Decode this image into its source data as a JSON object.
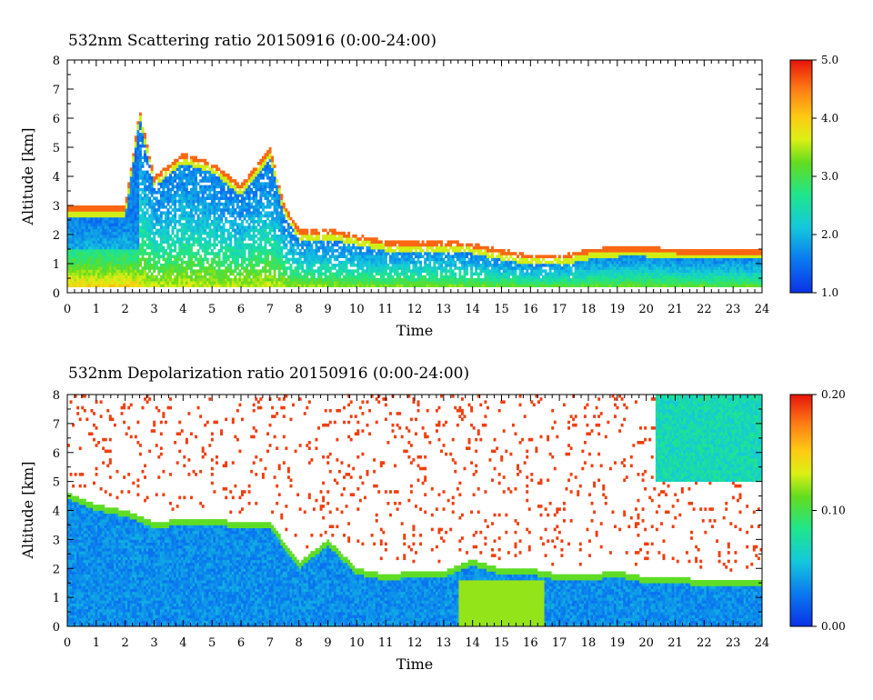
{
  "chart_data": [
    {
      "type": "heatmap",
      "title": "532nm Scattering ratio  20150916 (0:00-24:00)",
      "xlabel": "Time",
      "ylabel": "Altitude [km]",
      "xlim": [
        0,
        24
      ],
      "ylim": [
        0,
        8
      ],
      "x_ticks": [
        "0",
        "1",
        "2",
        "3",
        "4",
        "5",
        "6",
        "7",
        "8",
        "9",
        "10",
        "11",
        "12",
        "13",
        "14",
        "15",
        "16",
        "17",
        "18",
        "19",
        "20",
        "21",
        "22",
        "23",
        "24"
      ],
      "y_ticks": [
        "0",
        "1",
        "2",
        "3",
        "4",
        "5",
        "6",
        "7",
        "8"
      ],
      "colorbar": {
        "min": 1.0,
        "max": 5.0,
        "ticks": [
          "1.0",
          "2.0",
          "3.0",
          "4.0",
          "5.0"
        ]
      },
      "cloud_top_km": [
        [
          0,
          3.0
        ],
        [
          1,
          3.0
        ],
        [
          2,
          3.0
        ],
        [
          2.5,
          6.3
        ],
        [
          3,
          4.0
        ],
        [
          4,
          4.8
        ],
        [
          5,
          4.5
        ],
        [
          6,
          3.7
        ],
        [
          7,
          5.0
        ],
        [
          7.5,
          3.0
        ],
        [
          8,
          2.2
        ],
        [
          9,
          2.2
        ],
        [
          10,
          2.0
        ],
        [
          11,
          1.8
        ],
        [
          12,
          1.8
        ],
        [
          13,
          1.8
        ],
        [
          14,
          1.7
        ],
        [
          15,
          1.5
        ],
        [
          16,
          1.3
        ],
        [
          17,
          1.3
        ],
        [
          18,
          1.5
        ],
        [
          19,
          1.6
        ],
        [
          20,
          1.6
        ],
        [
          21,
          1.5
        ],
        [
          22,
          1.5
        ],
        [
          23,
          1.5
        ],
        [
          24,
          1.5
        ]
      ],
      "boundary_layer_ratio": [
        [
          0,
          4.2
        ],
        [
          0.5,
          3.6
        ],
        [
          1,
          3.0
        ],
        [
          1.5,
          2.6
        ],
        [
          2,
          2.3
        ],
        [
          2.5,
          2.0
        ]
      ]
    },
    {
      "type": "heatmap",
      "title": "532nm Depolarization ratio  20150916 (0:00-24:00)",
      "xlabel": "Time",
      "ylabel": "Altitude [km]",
      "xlim": [
        0,
        24
      ],
      "ylim": [
        0,
        8
      ],
      "x_ticks": [
        "0",
        "1",
        "2",
        "3",
        "4",
        "5",
        "6",
        "7",
        "8",
        "9",
        "10",
        "11",
        "12",
        "13",
        "14",
        "15",
        "16",
        "17",
        "18",
        "19",
        "20",
        "21",
        "22",
        "23",
        "24"
      ],
      "y_ticks": [
        "0",
        "1",
        "2",
        "3",
        "4",
        "5",
        "6",
        "7",
        "8"
      ],
      "colorbar": {
        "min": 0.0,
        "max": 0.2,
        "ticks": [
          "0.00",
          "0.10",
          "0.20"
        ]
      },
      "aerosol_top_km": [
        [
          0,
          4.6
        ],
        [
          1,
          4.2
        ],
        [
          2,
          4.0
        ],
        [
          3,
          3.6
        ],
        [
          4,
          3.7
        ],
        [
          5,
          3.7
        ],
        [
          6,
          3.6
        ],
        [
          7,
          3.6
        ],
        [
          8,
          2.2
        ],
        [
          9,
          3.0
        ],
        [
          10,
          2.0
        ],
        [
          11,
          1.8
        ],
        [
          12,
          1.9
        ],
        [
          13,
          1.9
        ],
        [
          14,
          2.3
        ],
        [
          15,
          2.0
        ],
        [
          16,
          2.0
        ],
        [
          17,
          1.8
        ],
        [
          18,
          1.8
        ],
        [
          19,
          1.9
        ],
        [
          20,
          1.7
        ],
        [
          21,
          1.7
        ],
        [
          22,
          1.6
        ],
        [
          23,
          1.6
        ],
        [
          24,
          1.6
        ]
      ],
      "high_depolarization_interval_h": [
        13.5,
        16.5
      ],
      "high_depolarization_ratio": 0.12,
      "upper_layer": {
        "x": [
          20.3,
          24
        ],
        "altitude_km": [
          5.0,
          8.0
        ],
        "ratio": 0.07
      }
    }
  ]
}
